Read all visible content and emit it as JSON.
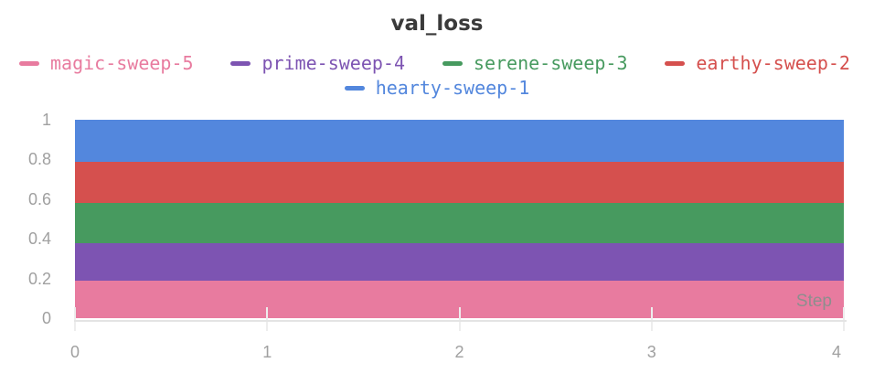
{
  "chart": {
    "title": "val_loss",
    "x_axis": {
      "label": "Step",
      "ticks": [
        {
          "label": "0",
          "value": 0
        },
        {
          "label": "1",
          "value": 1
        },
        {
          "label": "2",
          "value": 2
        },
        {
          "label": "3",
          "value": 3
        },
        {
          "label": "4",
          "value": 4
        }
      ]
    },
    "y_axis": {
      "ticks": [
        {
          "label": "0",
          "value": 0
        },
        {
          "label": "0.2",
          "value": 0.2
        },
        {
          "label": "0.4",
          "value": 0.4
        },
        {
          "label": "0.6",
          "value": 0.6
        },
        {
          "label": "0.8",
          "value": 0.8
        },
        {
          "label": "1",
          "value": 1
        }
      ]
    },
    "legend": {
      "items": [
        {
          "label": "magic-sweep-5",
          "color": "#E87B9F",
          "row": 0
        },
        {
          "label": "prime-sweep-4",
          "color": "#7D54B2",
          "row": 0
        },
        {
          "label": "serene-sweep-3",
          "color": "#479A5F",
          "row": 0
        },
        {
          "label": "earthy-sweep-2",
          "color": "#D5504E",
          "row": 0
        },
        {
          "label": "hearty-sweep-1",
          "color": "#5387DD",
          "row": 1
        }
      ]
    }
  },
  "chart_data": {
    "type": "area",
    "title": "val_loss",
    "xlabel": "Step",
    "ylabel": "",
    "xlim": [
      0,
      4
    ],
    "ylim": [
      0,
      1
    ],
    "x": [
      0,
      1,
      2,
      3,
      4
    ],
    "grid": false,
    "legend_position": "top",
    "series": [
      {
        "name": "magic-sweep-5",
        "color": "#E87B9F",
        "band": [
          0.0,
          0.19
        ],
        "values": [
          0.19,
          0.19,
          0.19,
          0.19,
          0.19
        ]
      },
      {
        "name": "prime-sweep-4",
        "color": "#7D54B2",
        "band": [
          0.19,
          0.375
        ],
        "values": [
          0.375,
          0.375,
          0.375,
          0.375,
          0.375
        ]
      },
      {
        "name": "serene-sweep-3",
        "color": "#479A5F",
        "band": [
          0.375,
          0.58
        ],
        "values": [
          0.58,
          0.58,
          0.58,
          0.58,
          0.58
        ]
      },
      {
        "name": "earthy-sweep-2",
        "color": "#D5504E",
        "band": [
          0.58,
          0.785
        ],
        "values": [
          0.785,
          0.785,
          0.785,
          0.785,
          0.785
        ]
      },
      {
        "name": "hearty-sweep-1",
        "color": "#5387DD",
        "band": [
          0.785,
          1.0
        ],
        "values": [
          1.0,
          1.0,
          1.0,
          1.0,
          1.0
        ]
      }
    ],
    "note": "Each run renders as a flat horizontal colored band spanning x=0..4; bands stack to fill y=0..1."
  },
  "colors": {
    "title": "#3A3A3A",
    "axis_label": "#A0A0A0",
    "step_label": "#8E8E8E",
    "axis_line": "#E4E4E4",
    "tick_mark": "#EDEDED",
    "background": "#FFFFFF"
  }
}
